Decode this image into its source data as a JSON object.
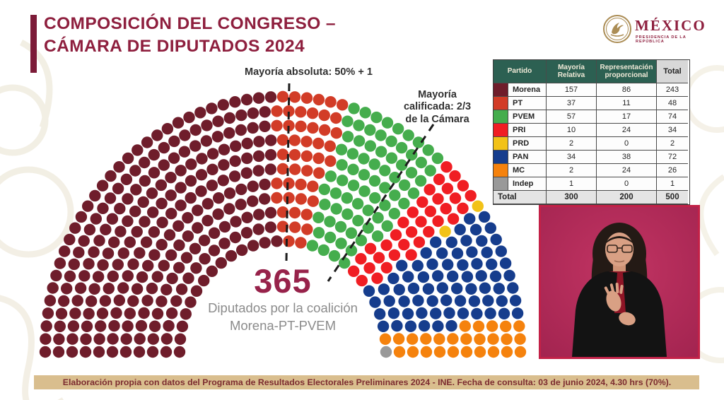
{
  "slide": {
    "title_line1": "COMPOSICIÓN DEL CONGRESO –",
    "title_line2": "CÁMARA DE DIPUTADOS 2024"
  },
  "logo": {
    "country": "MÉXICO",
    "subtitle": "PRESIDENCIA DE LA REPÚBLICA"
  },
  "annotations": {
    "absolute_majority_label": "Mayoría absoluta: 50% + 1",
    "qualified_majority_line1": "Mayoría",
    "qualified_majority_line2": "calificada: 2/3",
    "qualified_majority_line3": "de la Cámara"
  },
  "coalition_callout": {
    "number": "365",
    "caption_line1": "Diputados por la coalición",
    "caption_line2": "Morena-PT-PVEM"
  },
  "chart_data": {
    "type": "parliament-hemicycle",
    "title": "Composición del Congreso – Cámara de Diputados 2024",
    "total_seats": 500,
    "seat_fill_order": "left-to-right",
    "legend_position": "table-right",
    "series": [
      {
        "party": "Morena",
        "color": "#6f1d2b",
        "relative_majority": 157,
        "proportional": 86,
        "total": 243
      },
      {
        "party": "PT",
        "color": "#d23c27",
        "relative_majority": 37,
        "proportional": 11,
        "total": 48
      },
      {
        "party": "PVEM",
        "color": "#45ad4d",
        "relative_majority": 57,
        "proportional": 17,
        "total": 74
      },
      {
        "party": "PRI",
        "color": "#f01e23",
        "relative_majority": 10,
        "proportional": 24,
        "total": 34
      },
      {
        "party": "PRD",
        "color": "#f2c218",
        "relative_majority": 2,
        "proportional": 0,
        "total": 2
      },
      {
        "party": "PAN",
        "color": "#163d8d",
        "relative_majority": 34,
        "proportional": 38,
        "total": 72
      },
      {
        "party": "MC",
        "color": "#f5820d",
        "relative_majority": 2,
        "proportional": 24,
        "total": 26
      },
      {
        "party": "Indep",
        "color": "#999999",
        "relative_majority": 1,
        "proportional": 0,
        "total": 1
      }
    ]
  },
  "table": {
    "header": {
      "partido": "Partido",
      "relative": "Mayoría Relativa",
      "proportional": "Representación proporcional",
      "total": "Total"
    },
    "total_row": {
      "label": "Total",
      "relative": "300",
      "proportional": "200",
      "total": "500"
    }
  },
  "footer": {
    "note": "Elaboración propia con datos del Programa de Resultados Electorales Preliminares 2024 - INE. Fecha de consulta: 03 de junio 2024, 4.30 hrs (70%)."
  }
}
